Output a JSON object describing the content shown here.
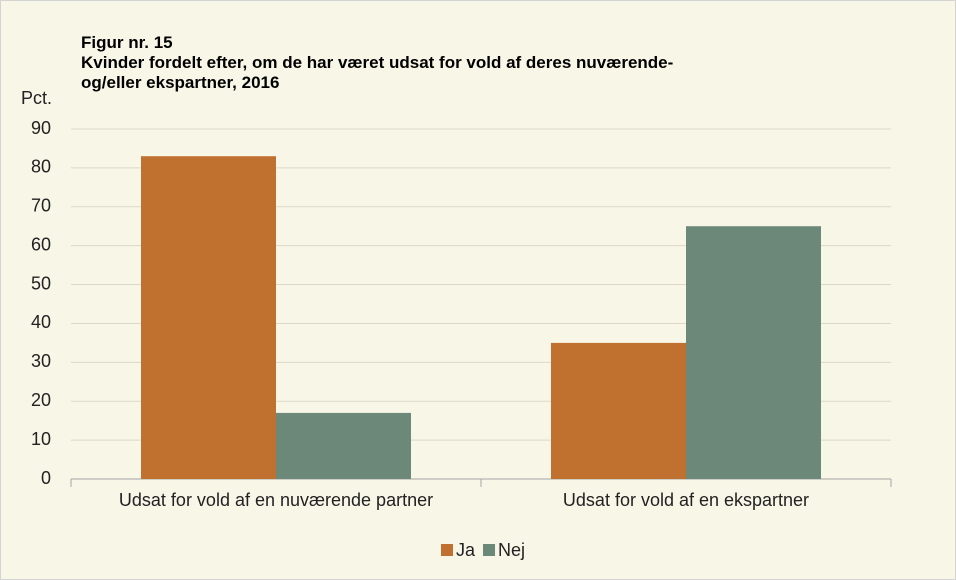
{
  "chart_data": {
    "type": "bar",
    "title": "Figur nr. 15",
    "subtitle": "Kvinder fordelt efter, om de har været udsat for vold af deres nuværende- og/eller ekspartner, 2016",
    "y_label": "Pct.",
    "categories": [
      "Udsat for vold af en nuværende partner",
      "Udsat for vold af en ekspartner"
    ],
    "series": [
      {
        "name": "Ja",
        "color": "#c0702f",
        "values": [
          83,
          35
        ]
      },
      {
        "name": "Nej",
        "color": "#6b8878",
        "values": [
          17,
          65
        ]
      }
    ],
    "ylim": [
      0,
      90
    ],
    "yticks": [
      0,
      10,
      20,
      30,
      40,
      50,
      60,
      70,
      80,
      90
    ],
    "grid": true,
    "legend": "bottom"
  }
}
